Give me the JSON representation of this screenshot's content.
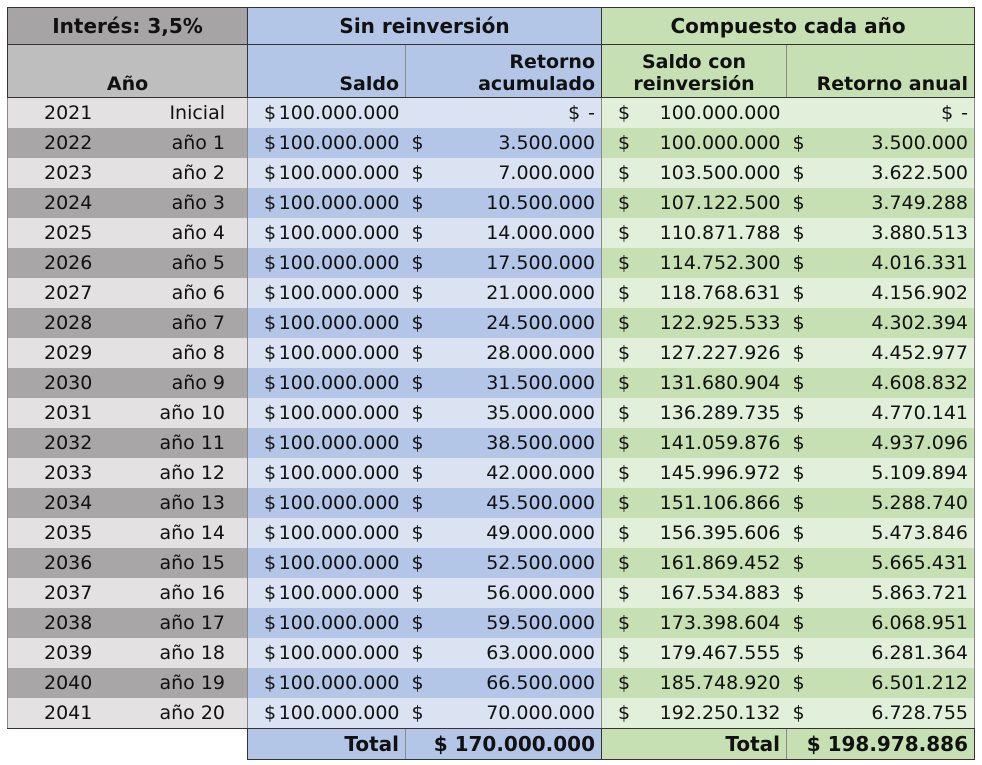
{
  "header": {
    "interest_label": "Interés: 3,5%",
    "group_no_reinvest": "Sin reinversión",
    "group_compound": "Compuesto cada año",
    "col_year": "Año",
    "col_saldo": "Saldo",
    "col_retorno_acum": "Retorno acumulado",
    "col_retorno_acum_l1": "Retorno",
    "col_retorno_acum_l2": "acumulado",
    "col_saldo_reinv_l1": "Saldo con",
    "col_saldo_reinv_l2": "reinversión",
    "col_retorno_anual": "Retorno anual"
  },
  "currency_symbol": "$",
  "rows": [
    {
      "year": "2021",
      "label": "Inicial",
      "saldo": "100.000.000",
      "retorno_acum": "-",
      "saldo_reinv": "100.000.000",
      "retorno_anual": "-"
    },
    {
      "year": "2022",
      "label": "año 1",
      "saldo": "100.000.000",
      "retorno_acum": "3.500.000",
      "saldo_reinv": "100.000.000",
      "retorno_anual": "3.500.000"
    },
    {
      "year": "2023",
      "label": "año 2",
      "saldo": "100.000.000",
      "retorno_acum": "7.000.000",
      "saldo_reinv": "103.500.000",
      "retorno_anual": "3.622.500"
    },
    {
      "year": "2024",
      "label": "año 3",
      "saldo": "100.000.000",
      "retorno_acum": "10.500.000",
      "saldo_reinv": "107.122.500",
      "retorno_anual": "3.749.288"
    },
    {
      "year": "2025",
      "label": "año 4",
      "saldo": "100.000.000",
      "retorno_acum": "14.000.000",
      "saldo_reinv": "110.871.788",
      "retorno_anual": "3.880.513"
    },
    {
      "year": "2026",
      "label": "año 5",
      "saldo": "100.000.000",
      "retorno_acum": "17.500.000",
      "saldo_reinv": "114.752.300",
      "retorno_anual": "4.016.331"
    },
    {
      "year": "2027",
      "label": "año 6",
      "saldo": "100.000.000",
      "retorno_acum": "21.000.000",
      "saldo_reinv": "118.768.631",
      "retorno_anual": "4.156.902"
    },
    {
      "year": "2028",
      "label": "año 7",
      "saldo": "100.000.000",
      "retorno_acum": "24.500.000",
      "saldo_reinv": "122.925.533",
      "retorno_anual": "4.302.394"
    },
    {
      "year": "2029",
      "label": "año 8",
      "saldo": "100.000.000",
      "retorno_acum": "28.000.000",
      "saldo_reinv": "127.227.926",
      "retorno_anual": "4.452.977"
    },
    {
      "year": "2030",
      "label": "año 9",
      "saldo": "100.000.000",
      "retorno_acum": "31.500.000",
      "saldo_reinv": "131.680.904",
      "retorno_anual": "4.608.832"
    },
    {
      "year": "2031",
      "label": "año 10",
      "saldo": "100.000.000",
      "retorno_acum": "35.000.000",
      "saldo_reinv": "136.289.735",
      "retorno_anual": "4.770.141"
    },
    {
      "year": "2032",
      "label": "año 11",
      "saldo": "100.000.000",
      "retorno_acum": "38.500.000",
      "saldo_reinv": "141.059.876",
      "retorno_anual": "4.937.096"
    },
    {
      "year": "2033",
      "label": "año 12",
      "saldo": "100.000.000",
      "retorno_acum": "42.000.000",
      "saldo_reinv": "145.996.972",
      "retorno_anual": "5.109.894"
    },
    {
      "year": "2034",
      "label": "año 13",
      "saldo": "100.000.000",
      "retorno_acum": "45.500.000",
      "saldo_reinv": "151.106.866",
      "retorno_anual": "5.288.740"
    },
    {
      "year": "2035",
      "label": "año 14",
      "saldo": "100.000.000",
      "retorno_acum": "49.000.000",
      "saldo_reinv": "156.395.606",
      "retorno_anual": "5.473.846"
    },
    {
      "year": "2036",
      "label": "año 15",
      "saldo": "100.000.000",
      "retorno_acum": "52.500.000",
      "saldo_reinv": "161.869.452",
      "retorno_anual": "5.665.431"
    },
    {
      "year": "2037",
      "label": "año 16",
      "saldo": "100.000.000",
      "retorno_acum": "56.000.000",
      "saldo_reinv": "167.534.883",
      "retorno_anual": "5.863.721"
    },
    {
      "year": "2038",
      "label": "año 17",
      "saldo": "100.000.000",
      "retorno_acum": "59.500.000",
      "saldo_reinv": "173.398.604",
      "retorno_anual": "6.068.951"
    },
    {
      "year": "2039",
      "label": "año 18",
      "saldo": "100.000.000",
      "retorno_acum": "63.000.000",
      "saldo_reinv": "179.467.555",
      "retorno_anual": "6.281.364"
    },
    {
      "year": "2040",
      "label": "año 19",
      "saldo": "100.000.000",
      "retorno_acum": "66.500.000",
      "saldo_reinv": "185.748.920",
      "retorno_anual": "6.501.212"
    },
    {
      "year": "2041",
      "label": "año 20",
      "saldo": "100.000.000",
      "retorno_acum": "70.000.000",
      "saldo_reinv": "192.250.132",
      "retorno_anual": "6.728.755"
    }
  ],
  "totals": {
    "label_no_reinvest": "Total",
    "value_no_reinvest": "$ 170.000.000",
    "label_compound": "Total",
    "value_compound": "$ 198.978.886"
  },
  "colors": {
    "gray_header": "#a6a4a4",
    "blue_header": "#b4c6e7",
    "green_header": "#c6e0b4",
    "blue_light": "#dbe3f3",
    "green_light": "#e2efda"
  }
}
